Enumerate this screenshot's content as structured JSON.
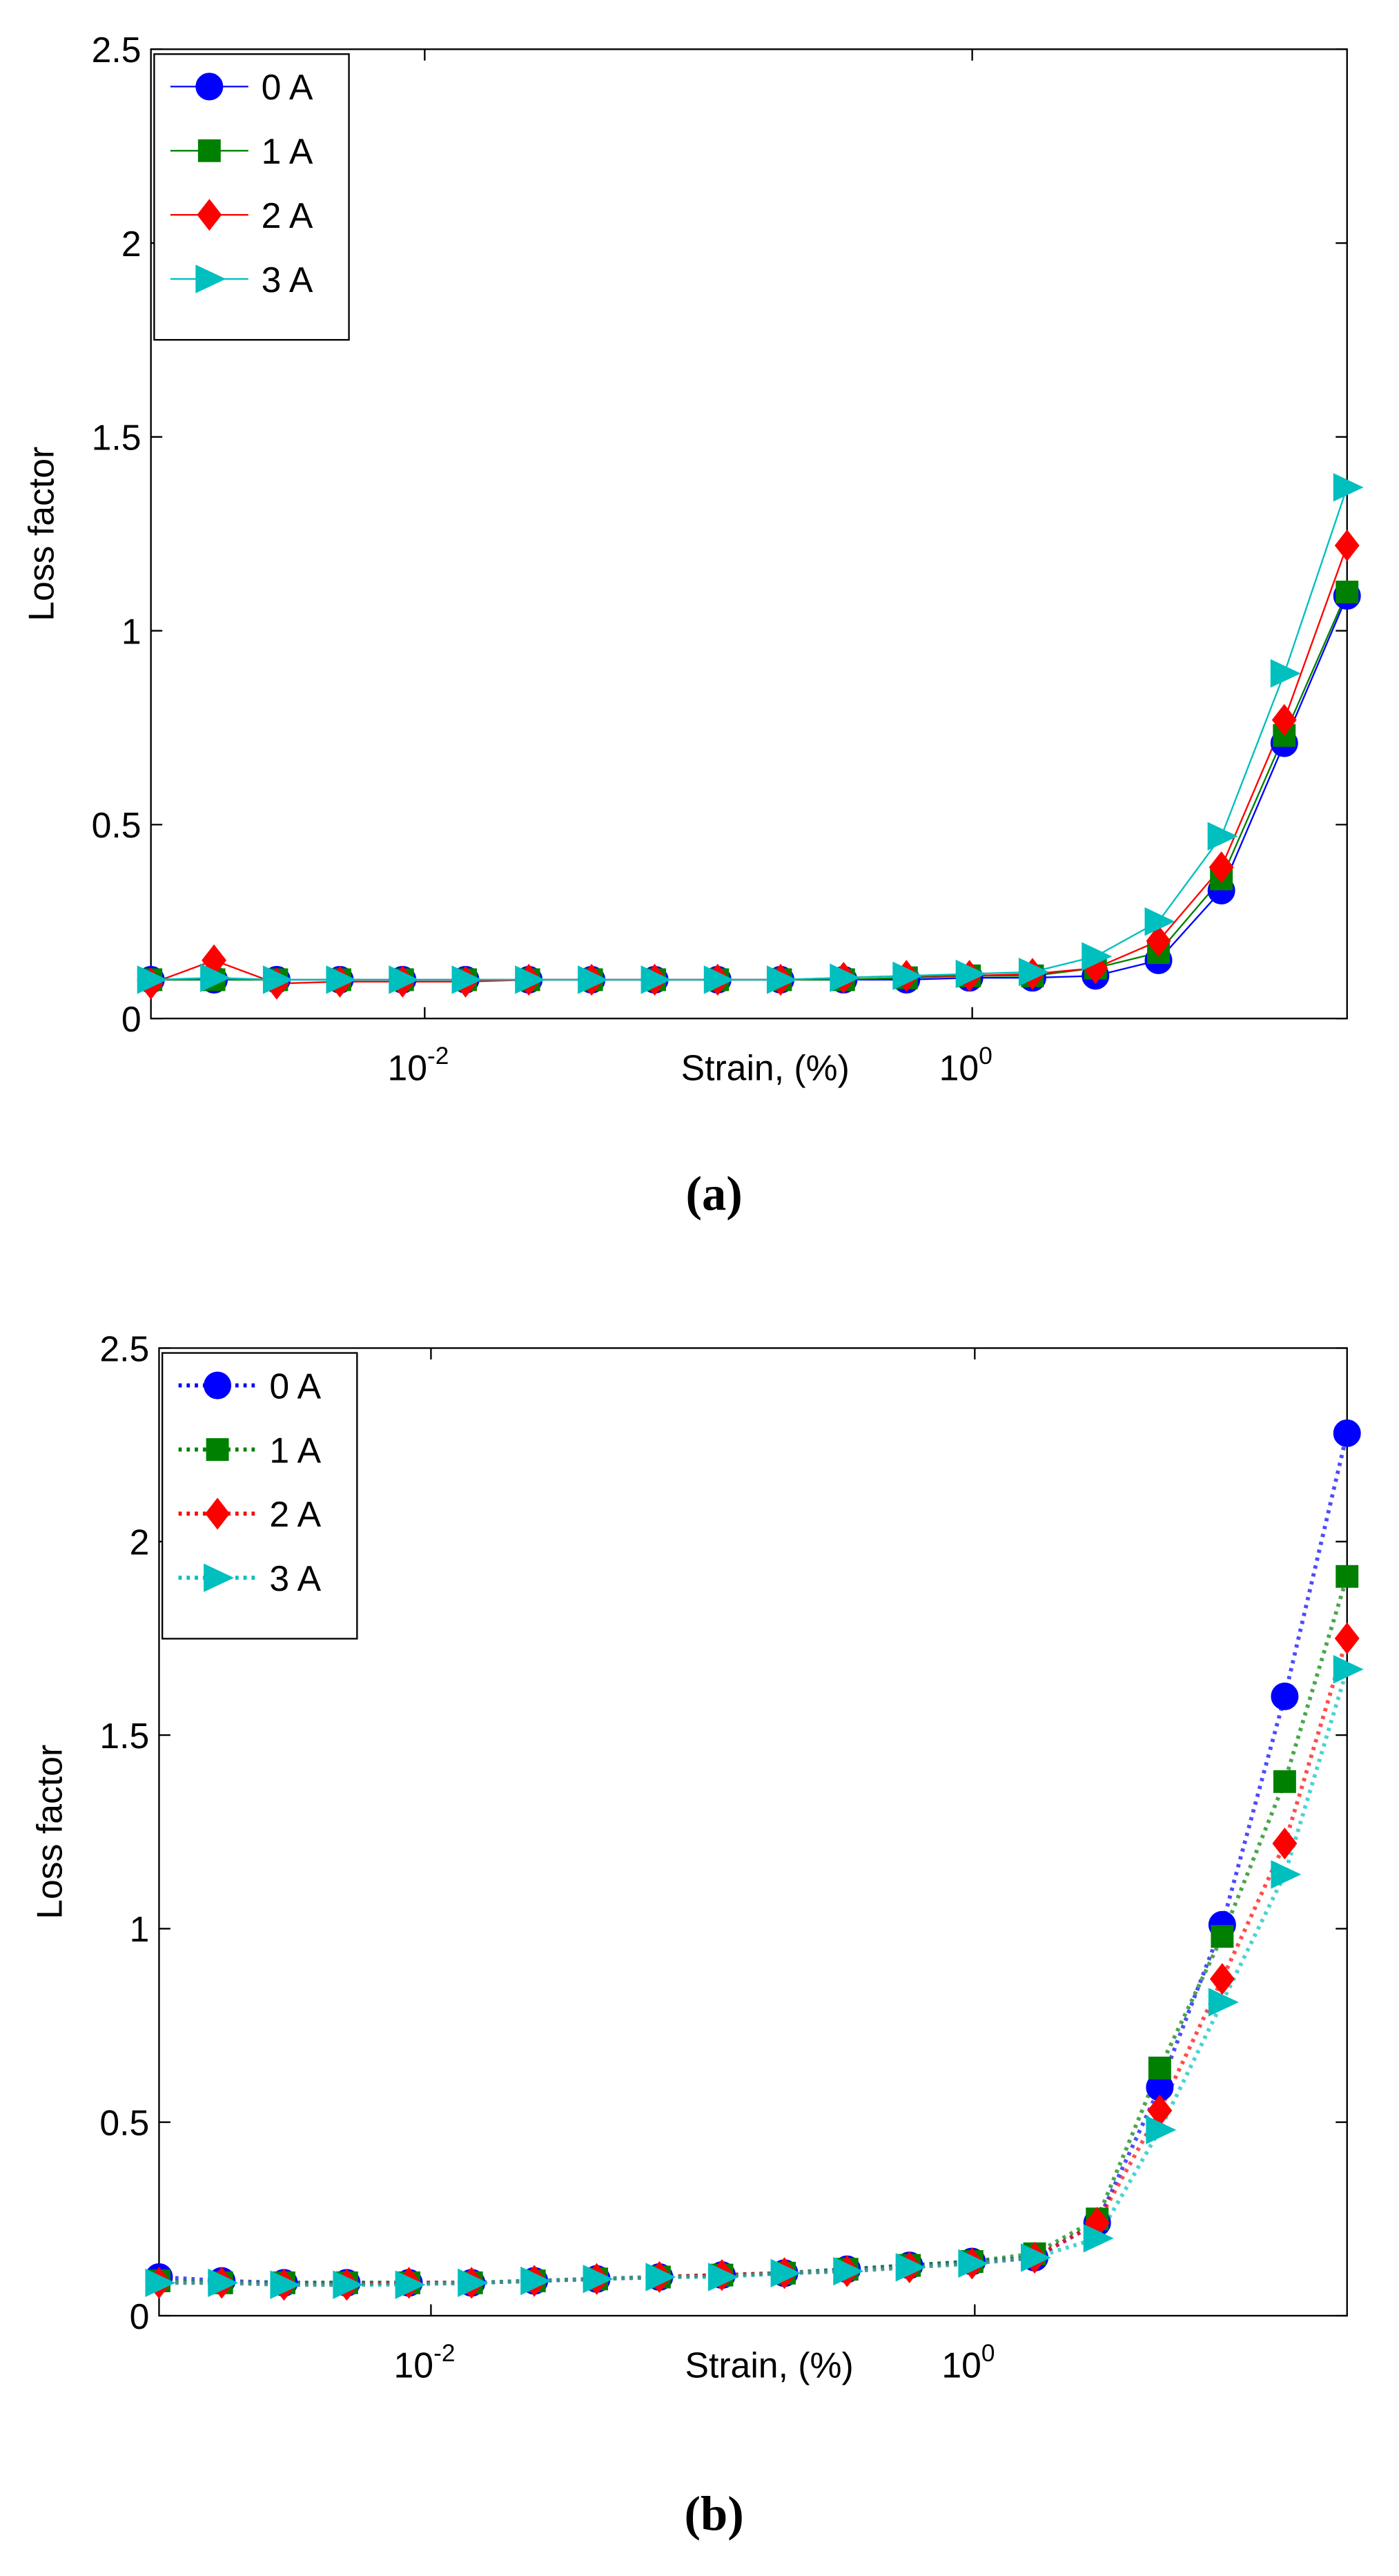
{
  "chart_data": [
    {
      "type": "line",
      "line_style": "solid",
      "caption": "(a)",
      "xlabel": "Strain, (%)",
      "ylabel": "Loss factor",
      "xscale": "log",
      "legend": "upper left",
      "xlim": [
        0.001,
        23.4
      ],
      "xticks": [
        {
          "value": 0.01,
          "label": "10",
          "exponent": "-2"
        },
        {
          "value": 1,
          "label": "10",
          "exponent": "0"
        }
      ],
      "ylim": [
        0,
        2.5
      ],
      "yticks": [
        0,
        0.5,
        1,
        1.5,
        2,
        2.5
      ],
      "x": [
        0.001,
        0.0017,
        0.00288,
        0.0049,
        0.0083,
        0.0141,
        0.024,
        0.0407,
        0.0692,
        0.1175,
        0.1995,
        0.339,
        0.575,
        0.977,
        1.66,
        2.82,
        4.79,
        8.13,
        13.8,
        23.4
      ],
      "series": [
        {
          "name": "0 A",
          "color": "#0000ff",
          "marker": "circle",
          "values": [
            0.1,
            0.1,
            0.1,
            0.1,
            0.1,
            0.1,
            0.1,
            0.1,
            0.1,
            0.1,
            0.1,
            0.1,
            0.1,
            0.105,
            0.105,
            0.11,
            0.15,
            0.33,
            0.71,
            1.09
          ]
        },
        {
          "name": "1 A",
          "color": "#008000",
          "marker": "square",
          "values": [
            0.1,
            0.1,
            0.1,
            0.1,
            0.1,
            0.1,
            0.1,
            0.1,
            0.1,
            0.1,
            0.1,
            0.1,
            0.105,
            0.11,
            0.11,
            0.13,
            0.17,
            0.36,
            0.73,
            1.1
          ]
        },
        {
          "name": "2 A",
          "color": "#ff0000",
          "marker": "diamond",
          "values": [
            0.09,
            0.15,
            0.09,
            0.095,
            0.095,
            0.095,
            0.1,
            0.1,
            0.1,
            0.1,
            0.1,
            0.105,
            0.11,
            0.11,
            0.115,
            0.13,
            0.2,
            0.39,
            0.77,
            1.22
          ]
        },
        {
          "name": "3 A",
          "color": "#00bfbf",
          "marker": "triangle",
          "values": [
            0.1,
            0.105,
            0.1,
            0.1,
            0.1,
            0.1,
            0.1,
            0.1,
            0.1,
            0.1,
            0.1,
            0.105,
            0.11,
            0.115,
            0.12,
            0.16,
            0.25,
            0.47,
            0.89,
            1.37
          ]
        }
      ]
    },
    {
      "type": "line",
      "line_style": "dotted",
      "caption": "(b)",
      "xlabel": "Strain, (%)",
      "ylabel": "Loss factor",
      "xscale": "log",
      "legend": "upper left",
      "xlim": [
        0.001,
        23.4
      ],
      "xticks": [
        {
          "value": 0.01,
          "label": "10",
          "exponent": "-2"
        },
        {
          "value": 1,
          "label": "10",
          "exponent": "0"
        }
      ],
      "ylim": [
        0,
        2.5
      ],
      "yticks": [
        0,
        0.5,
        1,
        1.5,
        2,
        2.5
      ],
      "x": [
        0.001,
        0.0017,
        0.00288,
        0.0049,
        0.0083,
        0.0141,
        0.024,
        0.0407,
        0.0692,
        0.1175,
        0.1995,
        0.339,
        0.575,
        0.977,
        1.66,
        2.82,
        4.79,
        8.13,
        13.8,
        23.4
      ],
      "series": [
        {
          "name": "0 A",
          "color": "#0000ff",
          "marker": "circle",
          "values": [
            0.1,
            0.09,
            0.085,
            0.085,
            0.085,
            0.085,
            0.09,
            0.095,
            0.1,
            0.105,
            0.11,
            0.12,
            0.13,
            0.14,
            0.15,
            0.24,
            0.59,
            1.01,
            1.6,
            2.28
          ]
        },
        {
          "name": "1 A",
          "color": "#008000",
          "marker": "square",
          "values": [
            0.09,
            0.085,
            0.085,
            0.085,
            0.085,
            0.085,
            0.09,
            0.095,
            0.1,
            0.105,
            0.11,
            0.12,
            0.13,
            0.14,
            0.16,
            0.25,
            0.64,
            0.98,
            1.38,
            1.91
          ]
        },
        {
          "name": "2 A",
          "color": "#ff0000",
          "marker": "diamond",
          "values": [
            0.085,
            0.085,
            0.08,
            0.08,
            0.085,
            0.085,
            0.09,
            0.095,
            0.1,
            0.105,
            0.11,
            0.115,
            0.125,
            0.135,
            0.15,
            0.24,
            0.53,
            0.87,
            1.22,
            1.75
          ]
        },
        {
          "name": "3 A",
          "color": "#00bfbf",
          "marker": "triangle",
          "values": [
            0.085,
            0.085,
            0.08,
            0.08,
            0.08,
            0.085,
            0.09,
            0.095,
            0.1,
            0.1,
            0.11,
            0.115,
            0.125,
            0.135,
            0.15,
            0.2,
            0.48,
            0.81,
            1.14,
            1.67
          ]
        }
      ]
    }
  ]
}
